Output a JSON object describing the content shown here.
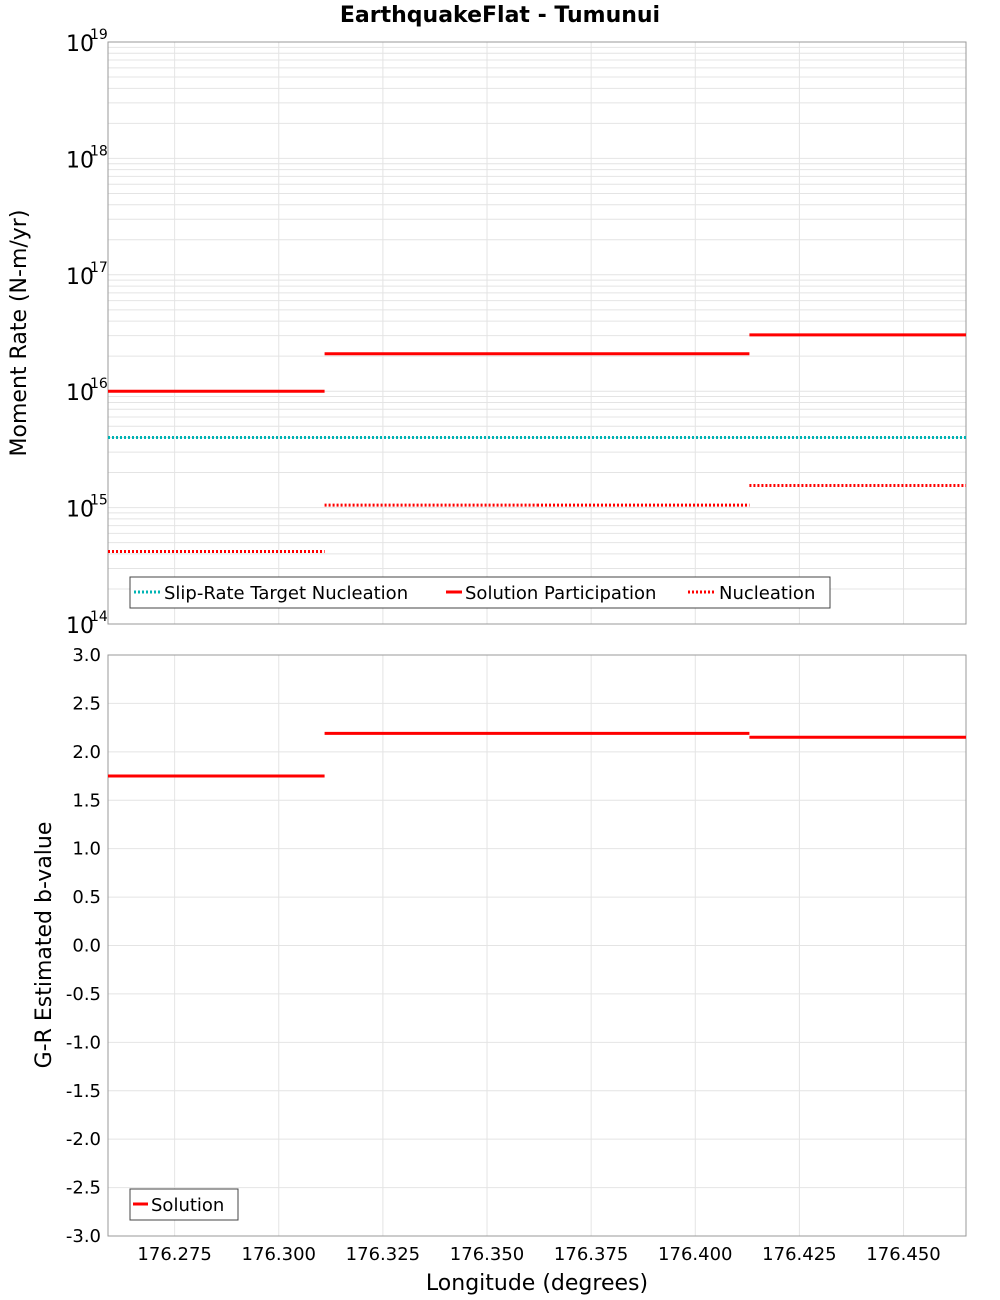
{
  "chart_data": [
    {
      "type": "line",
      "title": "EarthquakeFlat - Tumunui",
      "ylabel": "Moment Rate (N-m/yr)",
      "xlabel": "",
      "yscale": "log",
      "ylim": [
        100000000000000.0,
        1e+19
      ],
      "xlim": [
        176.259,
        176.465
      ],
      "y_tick_exponents": [
        14,
        15,
        16,
        17,
        18,
        19
      ],
      "y_tick_base": "10",
      "legend": "bottom-left",
      "series": [
        {
          "name": "Slip-Rate Target Nucleation",
          "style": "dotted",
          "color": "#00b4b4",
          "segments": [
            {
              "x": [
                176.259,
                176.465
              ],
              "y": 4000000000000000.0
            }
          ]
        },
        {
          "name": "Solution Participation",
          "style": "solid",
          "color": "#ff0000",
          "segments": [
            {
              "x": [
                176.259,
                176.311
              ],
              "y": 1e+16
            },
            {
              "x": [
                176.311,
                176.362
              ],
              "y": 2.1e+16
            },
            {
              "x": [
                176.362,
                176.413
              ],
              "y": 2.1e+16
            },
            {
              "x": [
                176.413,
                176.465
              ],
              "y": 3.05e+16
            }
          ]
        },
        {
          "name": "Nucleation",
          "style": "dotted",
          "color": "#ff0000",
          "segments": [
            {
              "x": [
                176.259,
                176.311
              ],
              "y": 420000000000000.0
            },
            {
              "x": [
                176.311,
                176.362
              ],
              "y": 1050000000000000.0
            },
            {
              "x": [
                176.362,
                176.413
              ],
              "y": 1050000000000000.0
            },
            {
              "x": [
                176.413,
                176.465
              ],
              "y": 1550000000000000.0
            }
          ]
        }
      ]
    },
    {
      "type": "line",
      "title": "",
      "ylabel": "G-R Estimated b-value",
      "xlabel": "Longitude (degrees)",
      "ylim": [
        -3.0,
        3.0
      ],
      "xlim": [
        176.259,
        176.465
      ],
      "y_ticks": [
        "3.0",
        "2.5",
        "2.0",
        "1.5",
        "1.0",
        "0.5",
        "0.0",
        "-0.5",
        "-1.0",
        "-1.5",
        "-2.0",
        "-2.5",
        "-3.0"
      ],
      "x_ticks": [
        "176.275",
        "176.300",
        "176.325",
        "176.350",
        "176.375",
        "176.400",
        "176.425",
        "176.450"
      ],
      "legend": "bottom-left",
      "series": [
        {
          "name": "Solution",
          "style": "solid",
          "color": "#ff0000",
          "segments": [
            {
              "x": [
                176.259,
                176.311
              ],
              "y": 1.75
            },
            {
              "x": [
                176.311,
                176.362
              ],
              "y": 2.19
            },
            {
              "x": [
                176.362,
                176.413
              ],
              "y": 2.19
            },
            {
              "x": [
                176.413,
                176.465
              ],
              "y": 2.15
            }
          ]
        }
      ]
    }
  ]
}
